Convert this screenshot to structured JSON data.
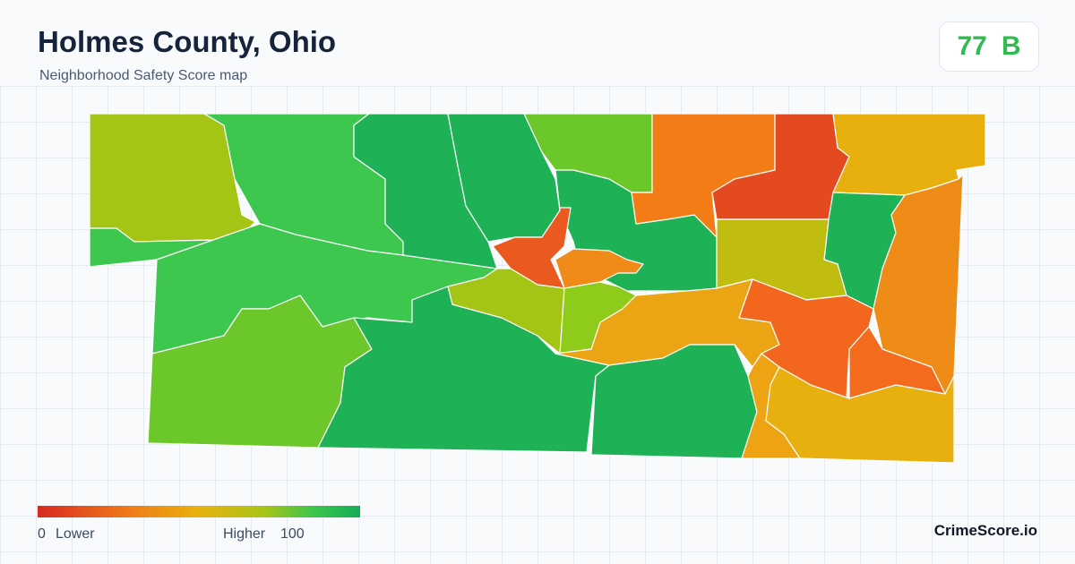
{
  "header": {
    "title": "Holmes County, Ohio",
    "subtitle": "Neighborhood Safety Score map"
  },
  "score": {
    "value": 77,
    "grade": "B"
  },
  "legend": {
    "min": 0,
    "min_label": "Lower",
    "max_label": "Higher",
    "max": 100
  },
  "footer": {
    "brand": "CrimeScore.io"
  }
}
